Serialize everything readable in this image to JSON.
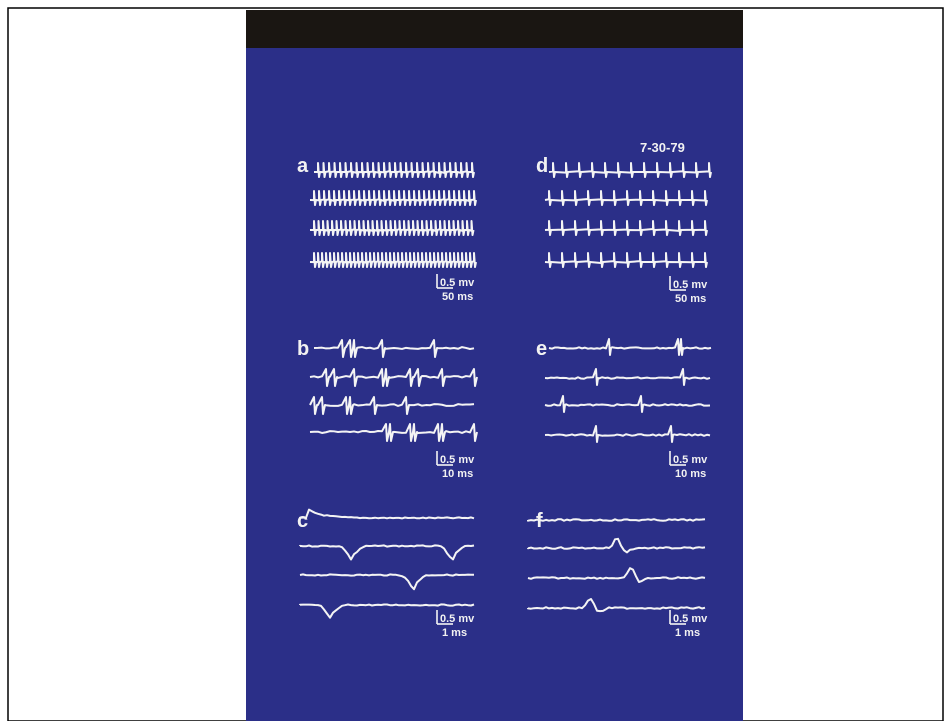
{
  "date": "7-30-79",
  "panels": [
    {
      "label": "a",
      "amplitude": "0.5 mv",
      "time": "50 ms"
    },
    {
      "label": "b",
      "amplitude": "0.5 mv",
      "time": "10 ms"
    },
    {
      "label": "c",
      "amplitude": "0.5 mv",
      "time": "1 ms"
    },
    {
      "label": "d",
      "amplitude": "0.5 mv",
      "time": "50 ms"
    },
    {
      "label": "e",
      "amplitude": "0.5 mv",
      "time": "10 ms"
    },
    {
      "label": "f",
      "amplitude": "0.5 mv",
      "time": "1 ms"
    }
  ]
}
